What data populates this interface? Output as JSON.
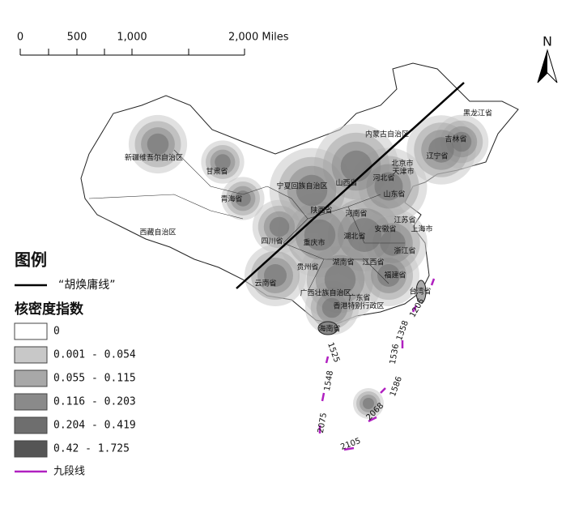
{
  "scale_bar": {
    "labels": [
      "0",
      "500",
      "1,000",
      "2,000 Miles"
    ]
  },
  "north_arrow": "N",
  "provinces": [
    "黑龙江省",
    "吉林省",
    "辽宁省",
    "内蒙古自治区",
    "北京市",
    "天津市",
    "河北省",
    "山西省",
    "山东省",
    "宁夏回族自治区",
    "甘肃省",
    "新疆维吾尔自治区",
    "青海省",
    "西藏自治区",
    "陕西省",
    "河南省",
    "江苏省",
    "上海市",
    "安徽省",
    "湖北省",
    "四川省",
    "重庆市",
    "浙江省",
    "贵州省",
    "湖南省",
    "江西省",
    "福建省",
    "云南省",
    "广西壮族自治区",
    "广东省",
    "香港特别行政区",
    "台湾省",
    "海南省"
  ],
  "legend": {
    "title": "图例",
    "hu_line": "“胡焕庸线”",
    "density_title": "核密度指数",
    "classes": [
      {
        "label": "0",
        "color": "#ffffff"
      },
      {
        "label": "0.001 - 0.054",
        "color": "#c8c8c8"
      },
      {
        "label": "0.055 - 0.115",
        "color": "#a8a8a8"
      },
      {
        "label": "0.116 - 0.203",
        "color": "#8a8a8a"
      },
      {
        "label": "0.204 - 0.419",
        "color": "#6e6e6e"
      },
      {
        "label": "0.42 - 1.725",
        "color": "#555555"
      }
    ],
    "nine_dash": "九段线"
  },
  "nine_dash_labels": [
    "1205",
    "1358",
    "1536",
    "1586",
    "2068",
    "2105",
    "2075",
    "1548",
    "1525"
  ]
}
